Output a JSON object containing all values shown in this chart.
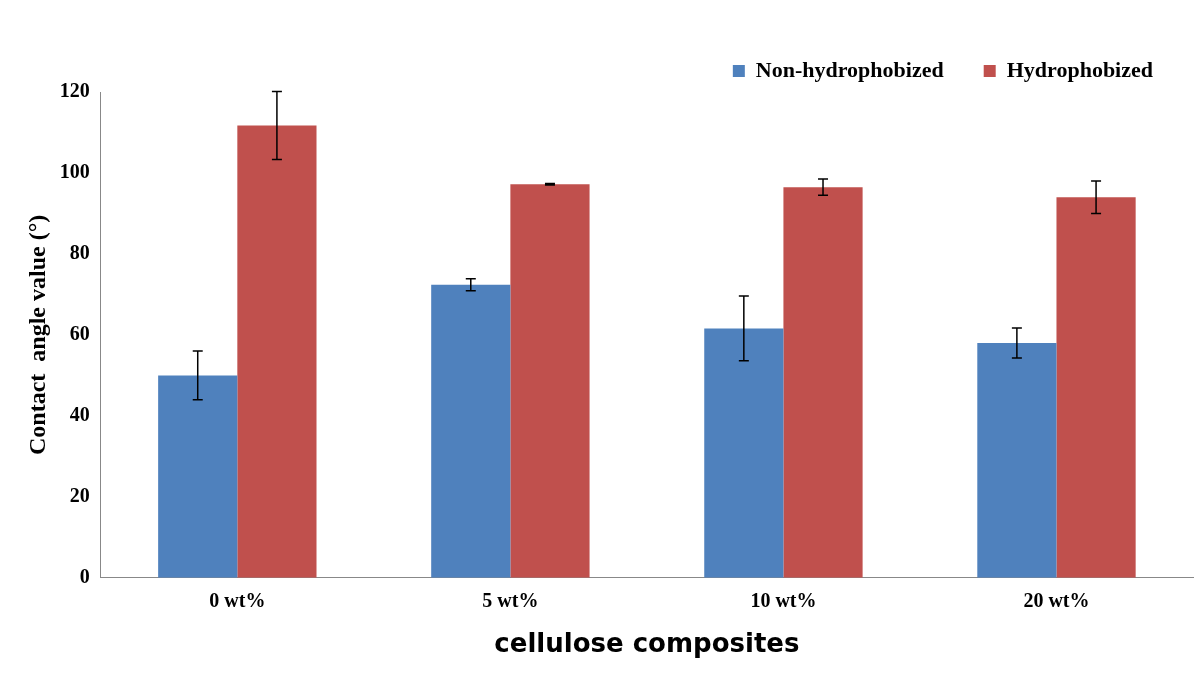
{
  "chart_data": {
    "type": "bar",
    "xlabel": "cellulose composites",
    "ylabel": "Contact  angle value (°)",
    "categories": [
      "0 wt%",
      "5 wt%",
      "10 wt%",
      "20 wt%"
    ],
    "series": [
      {
        "name": "Non-hydrophobized",
        "color": "#4f81bd",
        "values": [
          50,
          72.4,
          61.6,
          58
        ],
        "errors": [
          6,
          1.5,
          8,
          3.7
        ]
      },
      {
        "name": "Hydrophobized",
        "color": "#c0504d",
        "values": [
          111.7,
          97.2,
          96.5,
          94
        ],
        "errors": [
          8.4,
          0.2,
          2,
          4
        ]
      }
    ],
    "ylim": [
      0,
      120
    ],
    "yticks": [
      0,
      20,
      40,
      60,
      80,
      100,
      120
    ],
    "grid": false,
    "legend": "top right"
  }
}
